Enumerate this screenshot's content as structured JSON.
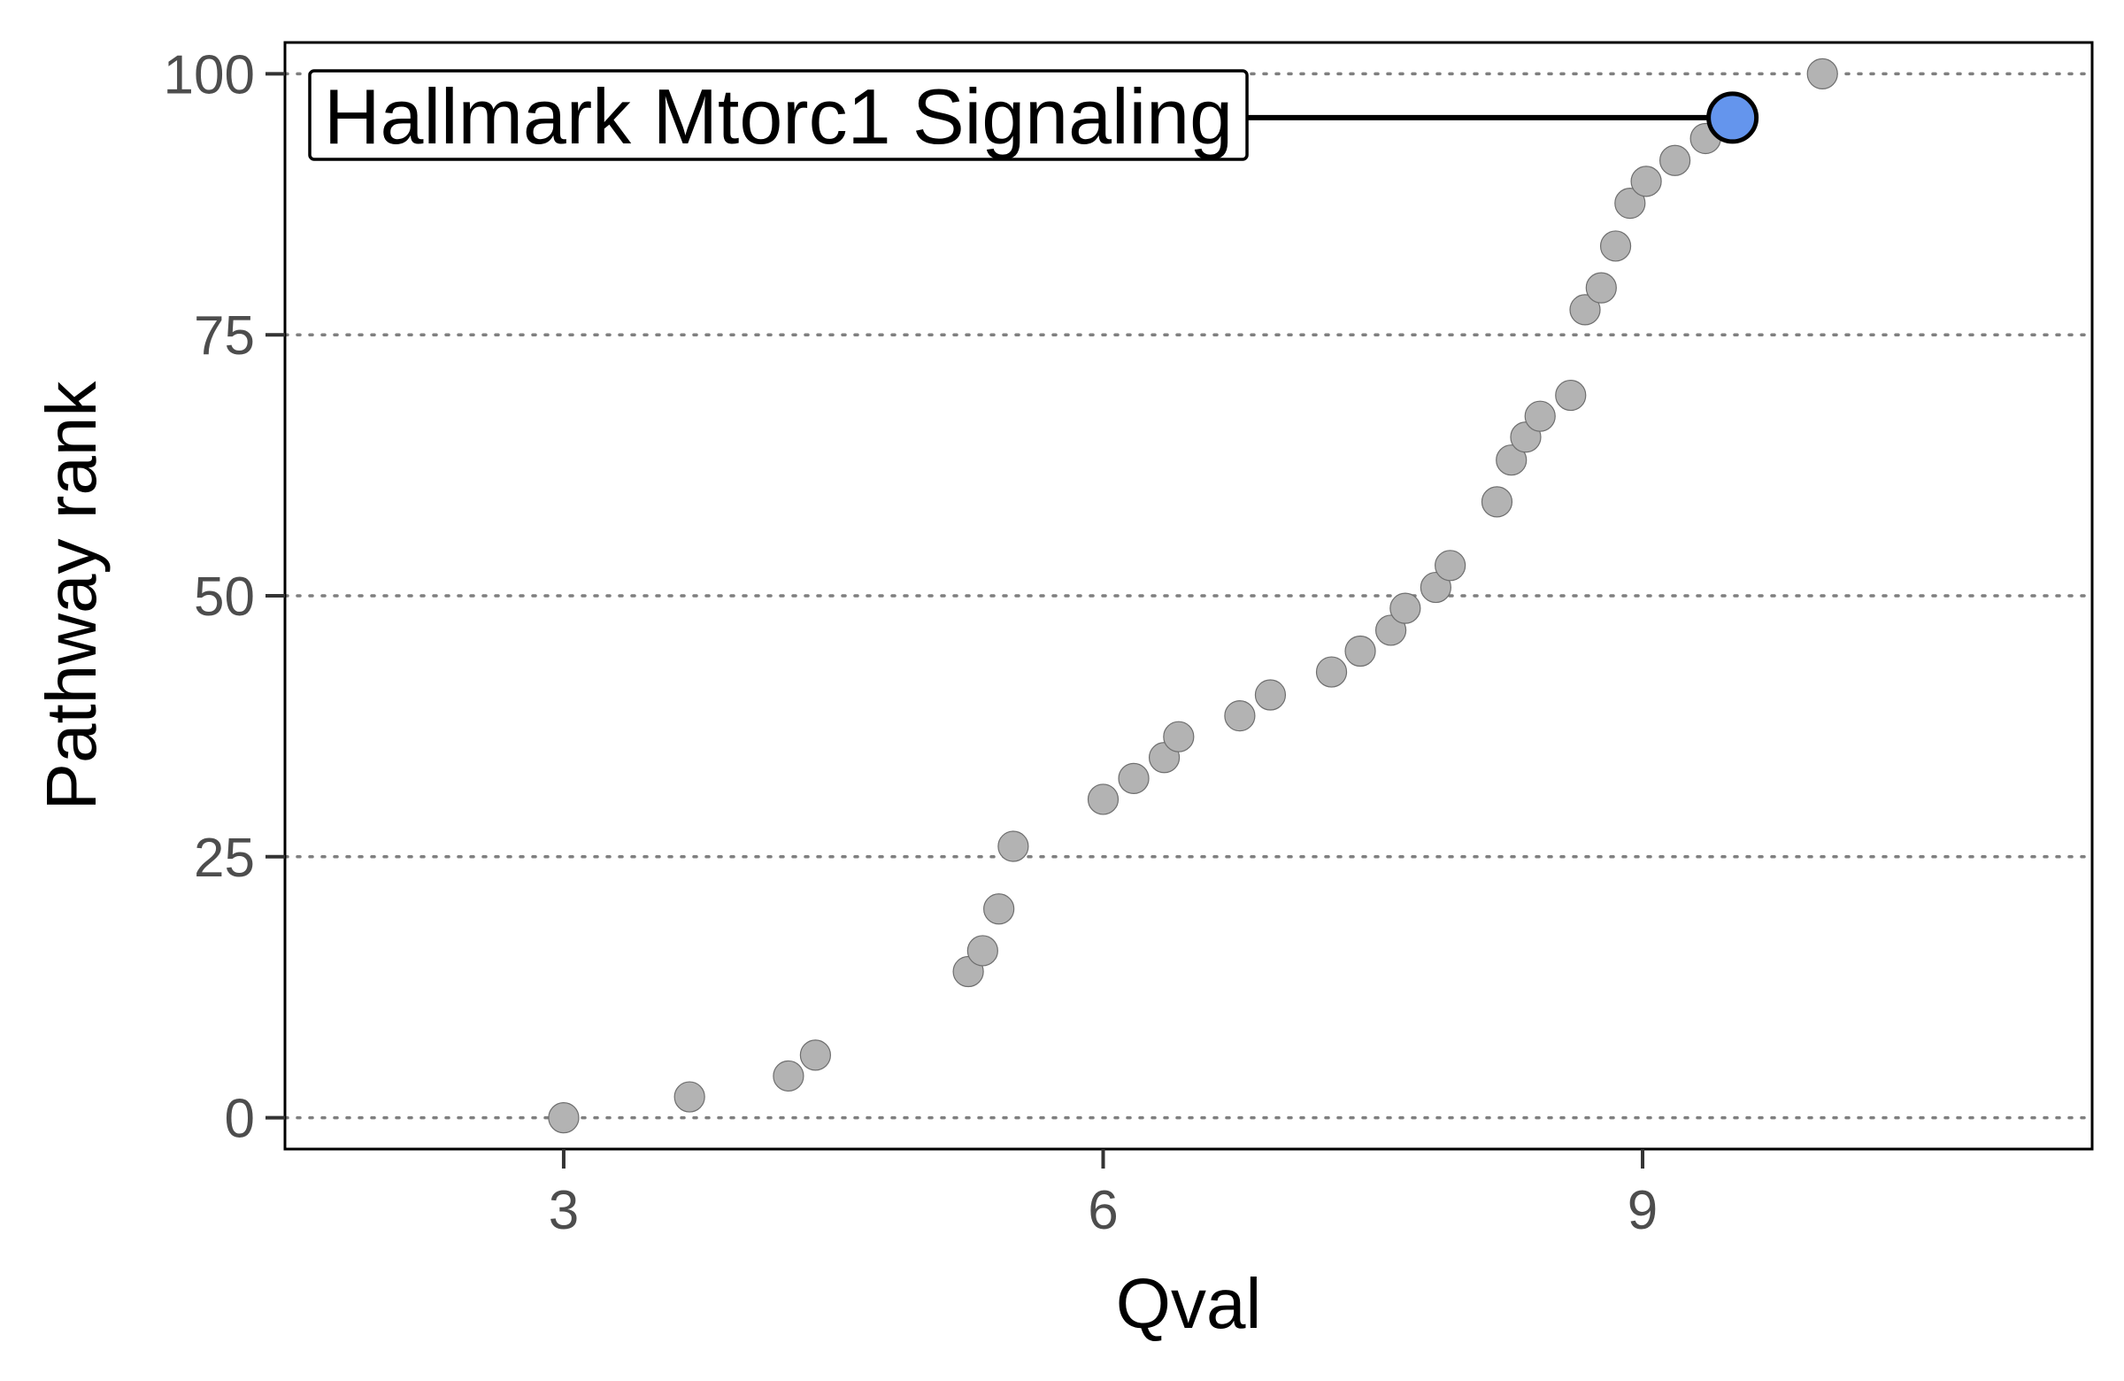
{
  "chart_data": {
    "type": "scatter",
    "title": "",
    "xlabel": "Qval",
    "ylabel": "Pathway rank",
    "xlim": [
      1.45,
      11.5
    ],
    "ylim": [
      -3,
      103
    ],
    "x_ticks": [
      3,
      6,
      9
    ],
    "y_ticks": [
      0,
      25,
      50,
      75,
      100
    ],
    "grid": "horizontal dotted",
    "legend": "none",
    "colors": {
      "points": "#b3b3b3",
      "highlight": "#6495ed",
      "grid": "#7f7f7f",
      "axis": "#000000"
    },
    "points": [
      {
        "x": 3.0,
        "y": 0
      },
      {
        "x": 3.7,
        "y": 2
      },
      {
        "x": 4.25,
        "y": 4
      },
      {
        "x": 4.4,
        "y": 6
      },
      {
        "x": 5.25,
        "y": 14
      },
      {
        "x": 5.33,
        "y": 16
      },
      {
        "x": 5.42,
        "y": 20
      },
      {
        "x": 5.5,
        "y": 26
      },
      {
        "x": 6.0,
        "y": 30.5
      },
      {
        "x": 6.17,
        "y": 32.5
      },
      {
        "x": 6.34,
        "y": 34.5
      },
      {
        "x": 6.42,
        "y": 36.5
      },
      {
        "x": 6.76,
        "y": 38.5
      },
      {
        "x": 6.93,
        "y": 40.5
      },
      {
        "x": 7.27,
        "y": 42.7
      },
      {
        "x": 7.43,
        "y": 44.7
      },
      {
        "x": 7.6,
        "y": 46.7
      },
      {
        "x": 7.68,
        "y": 48.8
      },
      {
        "x": 7.85,
        "y": 50.8
      },
      {
        "x": 7.93,
        "y": 52.9
      },
      {
        "x": 8.19,
        "y": 59
      },
      {
        "x": 8.27,
        "y": 63
      },
      {
        "x": 8.35,
        "y": 65.2
      },
      {
        "x": 8.43,
        "y": 67.2
      },
      {
        "x": 8.6,
        "y": 69.2
      },
      {
        "x": 8.68,
        "y": 77.4
      },
      {
        "x": 8.77,
        "y": 79.5
      },
      {
        "x": 8.85,
        "y": 83.5
      },
      {
        "x": 8.93,
        "y": 87.6
      },
      {
        "x": 9.02,
        "y": 89.7
      },
      {
        "x": 9.18,
        "y": 91.7
      },
      {
        "x": 9.35,
        "y": 93.8
      },
      {
        "x": 10.0,
        "y": 100
      }
    ],
    "highlight": {
      "label": "Hallmark Mtorc1 Signaling",
      "x": 9.5,
      "y": 95.8
    }
  }
}
